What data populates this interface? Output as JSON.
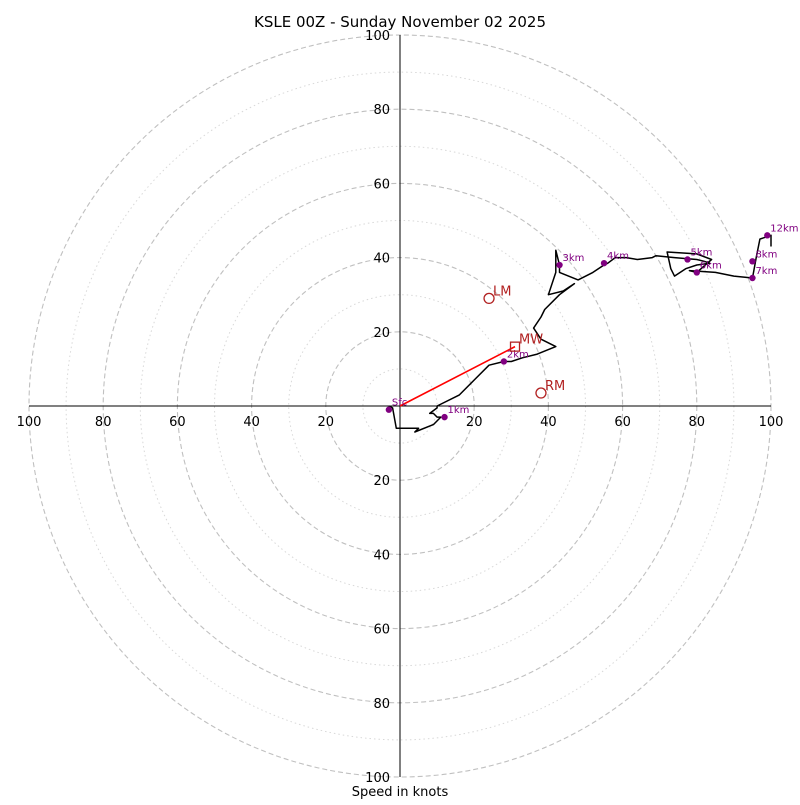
{
  "chart_data": {
    "type": "hodograph",
    "title": "KSLE 00Z - Sunday November 02 2025",
    "xlabel": "Speed in knots",
    "axis_range": [
      -100,
      100
    ],
    "ring_major": [
      20,
      40,
      60,
      80,
      100
    ],
    "ring_minor": [
      10,
      30,
      50,
      70,
      90
    ],
    "axis_tick_values": [
      20,
      40,
      60,
      80,
      100
    ],
    "axis_tick_labels": [
      "20",
      "40",
      "60",
      "80",
      "100"
    ],
    "trace": [
      [
        -3,
        0
      ],
      [
        -2,
        -0.5
      ],
      [
        -1,
        -6
      ],
      [
        1,
        -6
      ],
      [
        5,
        -6
      ],
      [
        4,
        -7
      ],
      [
        9,
        -5
      ],
      [
        11,
        -3
      ],
      [
        10,
        -3
      ],
      [
        9,
        -2
      ],
      [
        8,
        -2
      ],
      [
        10,
        -0.5
      ],
      [
        10,
        0
      ],
      [
        16,
        3
      ],
      [
        20,
        7
      ],
      [
        24,
        11
      ],
      [
        28,
        12
      ],
      [
        30,
        12
      ],
      [
        33,
        13
      ],
      [
        37,
        14
      ],
      [
        42,
        16
      ],
      [
        38,
        18
      ],
      [
        36,
        21
      ],
      [
        38,
        24
      ],
      [
        39,
        26
      ],
      [
        43,
        30
      ],
      [
        47,
        33
      ],
      [
        44,
        31
      ],
      [
        40,
        30
      ],
      [
        42,
        36
      ],
      [
        42,
        42
      ],
      [
        43,
        38
      ],
      [
        43,
        36
      ],
      [
        48,
        34
      ],
      [
        52,
        36
      ],
      [
        55,
        38
      ],
      [
        56,
        38.5
      ],
      [
        58,
        40
      ],
      [
        61,
        40
      ],
      [
        64,
        39.5
      ],
      [
        68,
        40
      ],
      [
        69,
        40.5
      ],
      [
        74,
        40
      ],
      [
        80,
        39.5
      ],
      [
        82,
        39
      ],
      [
        83.5,
        38.5
      ],
      [
        80,
        38
      ],
      [
        77,
        37
      ],
      [
        74,
        35
      ],
      [
        73,
        37
      ],
      [
        72,
        41.5
      ],
      [
        80,
        41
      ],
      [
        84,
        39.5
      ],
      [
        80,
        36
      ],
      [
        78,
        36.5
      ],
      [
        85,
        36
      ],
      [
        90,
        35
      ],
      [
        95,
        34.5
      ],
      [
        96,
        40
      ],
      [
        97,
        45
      ],
      [
        100,
        46
      ],
      [
        100,
        43
      ]
    ],
    "height_labels": [
      {
        "label": "Sfc",
        "u": -3,
        "v": -1
      },
      {
        "label": "1km",
        "u": 12,
        "v": -3
      },
      {
        "label": "2km",
        "u": 28,
        "v": 12
      },
      {
        "label": "3km",
        "u": 43,
        "v": 38
      },
      {
        "label": "4km",
        "u": 55,
        "v": 38.5
      },
      {
        "label": "5km",
        "u": 77.5,
        "v": 39.5
      },
      {
        "label": "6km",
        "u": 80,
        "v": 36
      },
      {
        "label": "7km",
        "u": 95,
        "v": 34.5
      },
      {
        "label": "8km",
        "u": 95,
        "v": 39
      },
      {
        "label": "12km",
        "u": 99,
        "v": 46
      }
    ],
    "storm_motion": [
      {
        "label": "LM",
        "u": 24,
        "v": 29,
        "marker": "circle"
      },
      {
        "label": "RM",
        "u": 38,
        "v": 3.5,
        "marker": "circle"
      },
      {
        "label": "MW",
        "u": 31,
        "v": 16,
        "marker": "square"
      }
    ],
    "shear_vector": {
      "from": [
        0,
        0
      ],
      "to": [
        31,
        16
      ]
    },
    "colors": {
      "trace": "#000000",
      "height_points": "#800080",
      "storm_motion": "#b22222",
      "shear_vector": "#ff0000",
      "ring_major": "#c0c0c0",
      "ring_minor": "#d8d8d8"
    }
  }
}
